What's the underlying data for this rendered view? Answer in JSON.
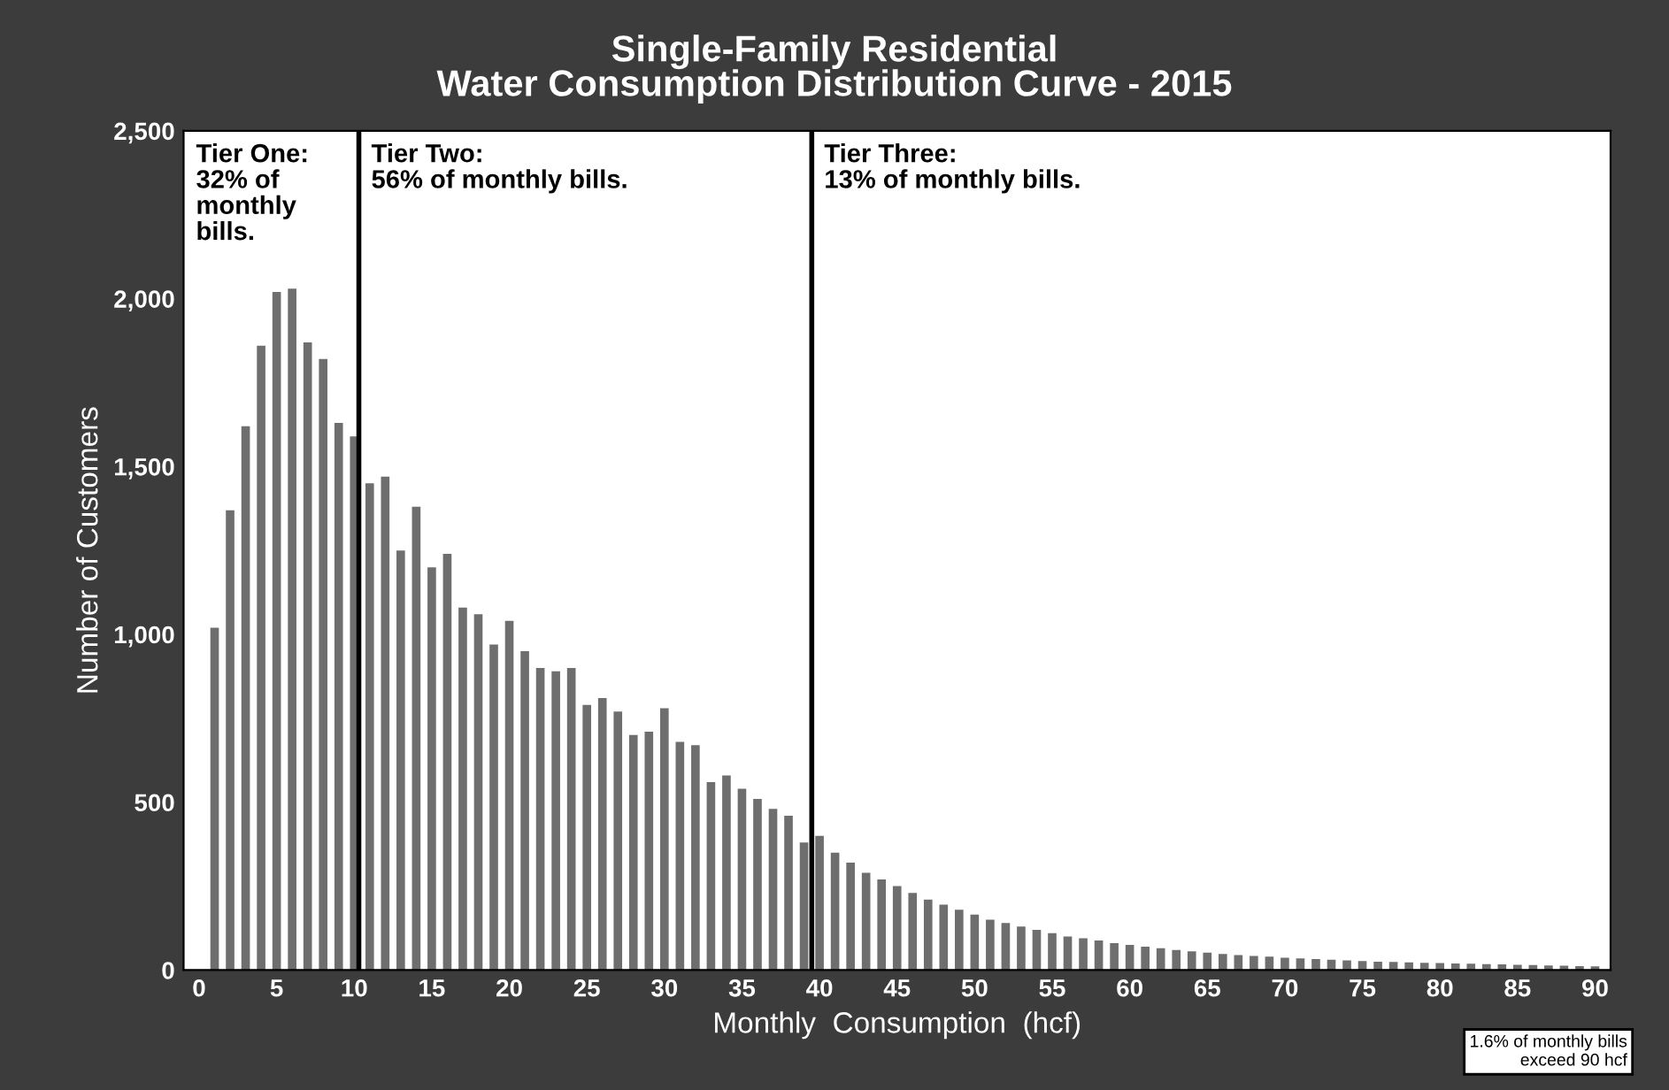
{
  "chart_data": {
    "type": "bar",
    "title": "Single-Family Residential\nWater Consumption Distribution Curve - 2015",
    "xlabel": "Monthly  Consumption  (hcf)",
    "ylabel": "Number of Customers",
    "x": [
      1,
      2,
      3,
      4,
      5,
      6,
      7,
      8,
      9,
      10,
      11,
      12,
      13,
      14,
      15,
      16,
      17,
      18,
      19,
      20,
      21,
      22,
      23,
      24,
      25,
      26,
      27,
      28,
      29,
      30,
      31,
      32,
      33,
      34,
      35,
      36,
      37,
      38,
      39,
      40,
      41,
      42,
      43,
      44,
      45,
      46,
      47,
      48,
      49,
      50,
      51,
      52,
      53,
      54,
      55,
      56,
      57,
      58,
      59,
      60,
      61,
      62,
      63,
      64,
      65,
      66,
      67,
      68,
      69,
      70,
      71,
      72,
      73,
      74,
      75,
      76,
      77,
      78,
      79,
      80,
      81,
      82,
      83,
      84,
      85,
      86,
      87,
      88,
      89,
      90
    ],
    "values": [
      1020,
      1370,
      1620,
      1860,
      2020,
      2030,
      1870,
      1820,
      1630,
      1590,
      1450,
      1470,
      1250,
      1380,
      1200,
      1240,
      1080,
      1060,
      970,
      1040,
      950,
      900,
      890,
      900,
      790,
      810,
      770,
      700,
      710,
      780,
      680,
      670,
      560,
      580,
      540,
      510,
      480,
      460,
      380,
      400,
      350,
      320,
      290,
      270,
      250,
      230,
      210,
      195,
      180,
      165,
      150,
      140,
      130,
      120,
      110,
      100,
      95,
      88,
      80,
      75,
      70,
      65,
      60,
      56,
      52,
      48,
      45,
      42,
      40,
      37,
      35,
      33,
      31,
      29,
      27,
      25,
      24,
      23,
      22,
      21,
      20,
      19,
      18,
      17,
      16,
      15,
      14,
      13,
      12,
      11
    ],
    "color": "#6e6e6e",
    "xlim": [
      -1,
      91
    ],
    "ylim": [
      0,
      2500
    ],
    "xticks": [
      0,
      5,
      10,
      15,
      20,
      25,
      30,
      35,
      40,
      45,
      50,
      55,
      60,
      65,
      70,
      75,
      80,
      85,
      90
    ],
    "yticks": [
      0,
      500,
      {
        "value": 1000,
        "label": "1,000"
      },
      {
        "value": 1500,
        "label": "1,500"
      },
      {
        "value": 2000,
        "label": "2,000"
      },
      {
        "value": 2500,
        "label": "2,500"
      }
    ],
    "ref_lines": [
      {
        "axis": "x",
        "value": 10.3,
        "color": "#000000"
      },
      {
        "axis": "x",
        "value": 39.5,
        "color": "#000000"
      }
    ],
    "annotations": [
      "Tier One:\n32% of\nmonthly\nbills.",
      "Tier Two:\n56% of monthly bills.",
      "Tier Three:\n13% of monthly bills.",
      "1.6% of monthly bills\nexceed 90 hcf"
    ],
    "grid": false,
    "legend": false
  }
}
